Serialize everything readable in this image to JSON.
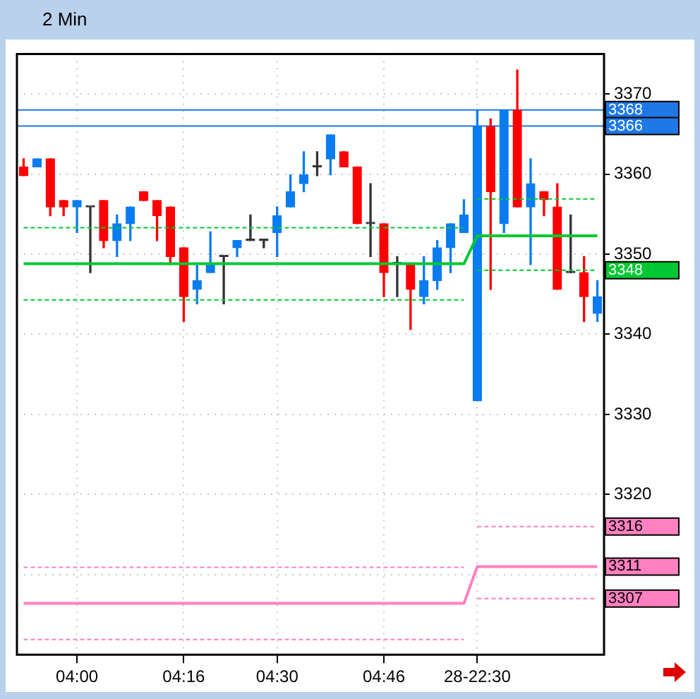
{
  "chart_data": {
    "type": "candlestick",
    "title": "2 Min",
    "categories": [
      null,
      null,
      null,
      null,
      "04:00",
      null,
      null,
      null,
      null,
      null,
      null,
      null,
      "04:16",
      null,
      null,
      null,
      null,
      null,
      null,
      "04:30",
      null,
      null,
      null,
      null,
      null,
      null,
      null,
      "04:46",
      null,
      null,
      null,
      null,
      null,
      null,
      "28-22:30",
      null,
      null,
      null,
      null,
      null,
      null,
      null,
      null,
      null
    ],
    "ohlc": [
      [
        3360.9,
        3361.9,
        3359.8,
        3359.8
      ],
      [
        3360.9,
        3361.9,
        3360.9,
        3361.9
      ],
      [
        3361.9,
        3361.9,
        3354.8,
        3355.9
      ],
      [
        3356.7,
        3356.7,
        3354.8,
        3355.9
      ],
      [
        3355.9,
        3356.7,
        3352.7,
        3356.7
      ],
      [
        3355.9,
        3355.9,
        3347.7,
        3355.9
      ],
      [
        3356.7,
        3356.7,
        3350.8,
        3351.7
      ],
      [
        3351.7,
        3354.9,
        3349.7,
        3353.8
      ],
      [
        3353.8,
        3355.9,
        3351.7,
        3355.9
      ],
      [
        3357.8,
        3357.8,
        3356.7,
        3356.7
      ],
      [
        3356.7,
        3356.7,
        3351.7,
        3354.8
      ],
      [
        3355.9,
        3355.9,
        3348.7,
        3349.7
      ],
      [
        3350.8,
        3350.8,
        3341.6,
        3344.7
      ],
      [
        3345.6,
        3348.8,
        3343.8,
        3346.7
      ],
      [
        3347.7,
        3352.8,
        3347.7,
        3348.8
      ],
      [
        3349.7,
        3349.7,
        3343.8,
        3349.7
      ],
      [
        3350.8,
        3351.7,
        3349.7,
        3351.7
      ],
      [
        3351.7,
        3354.9,
        3351.7,
        3351.7
      ],
      [
        3351.7,
        3351.7,
        3350.8,
        3351.7
      ],
      [
        3352.7,
        3355.9,
        3349.7,
        3354.8
      ],
      [
        3355.9,
        3359.9,
        3355.9,
        3357.8
      ],
      [
        3358.8,
        3362.8,
        3357.8,
        3359.9
      ],
      [
        3360.9,
        3362.8,
        3359.8,
        3360.9
      ],
      [
        3361.9,
        3364.9,
        3359.9,
        3364.9
      ],
      [
        3362.8,
        3362.8,
        3360.9,
        3360.9
      ],
      [
        3360.9,
        3360.9,
        3353.8,
        3353.8
      ],
      [
        3353.8,
        3358.8,
        3349.7,
        3353.8
      ],
      [
        3353.8,
        3353.8,
        3344.7,
        3347.7
      ],
      [
        3348.8,
        3349.7,
        3344.7,
        3348.8
      ],
      [
        3348.8,
        3348.8,
        3340.6,
        3345.6
      ],
      [
        3344.7,
        3349.7,
        3343.8,
        3346.7
      ],
      [
        3346.7,
        3351.7,
        3345.6,
        3350.8
      ],
      [
        3350.8,
        3353.8,
        3347.7,
        3353.8
      ],
      [
        3352.7,
        3356.8,
        3352.7,
        3354.9
      ],
      [
        3331.7,
        3368.0,
        3331.7,
        3365.9
      ],
      [
        3365.9,
        3366.9,
        3345.6,
        3357.8
      ],
      [
        3353.8,
        3368.0,
        3352.7,
        3368.0
      ],
      [
        3368.0,
        3373.0,
        3355.9,
        3355.9
      ],
      [
        3355.9,
        3361.9,
        3348.7,
        3358.8
      ],
      [
        3357.8,
        3357.8,
        3354.8,
        3356.8
      ],
      [
        3355.9,
        3358.8,
        3345.6,
        3345.6
      ],
      [
        3347.7,
        3354.9,
        3347.7,
        3347.7
      ],
      [
        3347.7,
        3349.7,
        3341.6,
        3344.7
      ],
      [
        3342.6,
        3346.7,
        3341.6,
        3344.7
      ]
    ],
    "colors": [
      "#ff0000",
      "#0a7cf0",
      "#ff0000",
      "#ff0000",
      "#0a7cf0",
      "#333333",
      "#ff0000",
      "#0a7cf0",
      "#0a7cf0",
      "#ff0000",
      "#ff0000",
      "#ff0000",
      "#ff0000",
      "#0a7cf0",
      "#0a7cf0",
      "#333333",
      "#0a7cf0",
      "#333333",
      "#333333",
      "#0a7cf0",
      "#0a7cf0",
      "#0a7cf0",
      "#333333",
      "#0a7cf0",
      "#ff0000",
      "#ff0000",
      "#333333",
      "#ff0000",
      "#333333",
      "#ff0000",
      "#0a7cf0",
      "#0a7cf0",
      "#0a7cf0",
      "#0a7cf0",
      "#0a7cf0",
      "#ff0000",
      "#0a7cf0",
      "#ff0000",
      "#0a7cf0",
      "#ff0000",
      "#ff0000",
      "#333333",
      "#ff0000",
      "#0a7cf0"
    ],
    "series": [
      {
        "type": "line",
        "color": "#00c832",
        "line_style": "solid",
        "values": [
          3348.8,
          3348.8,
          3348.8,
          3348.8,
          3348.8,
          3348.8,
          3348.8,
          3348.8,
          3348.8,
          3348.8,
          3348.8,
          3348.8,
          3348.8,
          3348.8,
          3348.8,
          3348.8,
          3348.8,
          3348.8,
          3348.8,
          3348.8,
          3348.8,
          3348.8,
          3348.8,
          3348.8,
          3348.8,
          3348.8,
          3348.8,
          3348.8,
          3348.8,
          3348.8,
          3348.8,
          3348.8,
          3348.8,
          3348.8,
          3352.3,
          3352.3,
          3352.3,
          3352.3,
          3352.3,
          3352.3,
          3352.3,
          3352.3,
          3352.3,
          3352.3
        ]
      },
      {
        "type": "line",
        "color": "#00c832",
        "line_style": "dashed",
        "values": [
          3353.3,
          3353.3,
          3353.3,
          3353.3,
          3353.3,
          3353.3,
          3353.3,
          3353.3,
          3353.3,
          3353.3,
          3353.3,
          3353.3,
          3353.3,
          3353.3,
          3353.3,
          3353.3,
          3353.3,
          3353.3,
          3353.3,
          3353.3,
          3353.3,
          3353.3,
          3353.3,
          3353.3,
          3353.3,
          3353.3,
          3353.3,
          3353.3,
          3353.3,
          3353.3,
          3353.3,
          3353.3,
          3353.3,
          3353.3,
          null,
          null,
          null,
          null,
          null,
          null,
          null,
          null,
          null,
          null
        ]
      },
      {
        "type": "line",
        "color": "#00c832",
        "line_style": "dashed",
        "values": [
          3344.3,
          3344.3,
          3344.3,
          3344.3,
          3344.3,
          3344.3,
          3344.3,
          3344.3,
          3344.3,
          3344.3,
          3344.3,
          3344.3,
          3344.3,
          3344.3,
          3344.3,
          3344.3,
          3344.3,
          3344.3,
          3344.3,
          3344.3,
          3344.3,
          3344.3,
          3344.3,
          3344.3,
          3344.3,
          3344.3,
          3344.3,
          3344.3,
          3344.3,
          3344.3,
          3344.3,
          3344.3,
          3344.3,
          3344.3,
          null,
          null,
          null,
          null,
          null,
          null,
          null,
          null,
          null,
          null
        ]
      },
      {
        "type": "line",
        "color": "#00c832",
        "line_style": "dashed",
        "values": [
          null,
          null,
          null,
          null,
          null,
          null,
          null,
          null,
          null,
          null,
          null,
          null,
          null,
          null,
          null,
          null,
          null,
          null,
          null,
          null,
          null,
          null,
          null,
          null,
          null,
          null,
          null,
          null,
          null,
          null,
          null,
          null,
          null,
          null,
          3356.9,
          3356.9,
          3356.9,
          3356.9,
          3356.9,
          3356.9,
          3356.9,
          3356.9,
          3356.9,
          3356.9
        ]
      },
      {
        "type": "line",
        "color": "#00c832",
        "line_style": "dashed",
        "values": [
          null,
          null,
          null,
          null,
          null,
          null,
          null,
          null,
          null,
          null,
          null,
          null,
          null,
          null,
          null,
          null,
          null,
          null,
          null,
          null,
          null,
          null,
          null,
          null,
          null,
          null,
          null,
          null,
          null,
          null,
          null,
          null,
          null,
          null,
          3348,
          3348,
          3348,
          3348,
          3348,
          3348,
          3348,
          3348,
          3348,
          3348
        ],
        "value_labels": [
          null,
          null,
          null,
          null,
          null,
          null,
          null,
          null,
          null,
          null,
          null,
          null,
          null,
          null,
          null,
          null,
          null,
          null,
          null,
          null,
          null,
          null,
          null,
          null,
          null,
          null,
          null,
          null,
          null,
          null,
          null,
          null,
          null,
          null,
          null,
          null,
          null,
          null,
          null,
          null,
          null,
          null,
          null,
          "3348"
        ]
      },
      {
        "type": "line",
        "color": "#ff80c0",
        "line_style": "solid",
        "values": [
          3306.4,
          3306.4,
          3306.4,
          3306.4,
          3306.4,
          3306.4,
          3306.4,
          3306.4,
          3306.4,
          3306.4,
          3306.4,
          3306.4,
          3306.4,
          3306.4,
          3306.4,
          3306.4,
          3306.4,
          3306.4,
          3306.4,
          3306.4,
          3306.4,
          3306.4,
          3306.4,
          3306.4,
          3306.4,
          3306.4,
          3306.4,
          3306.4,
          3306.4,
          3306.4,
          3306.4,
          3306.4,
          3306.4,
          3306.4,
          3311,
          3311,
          3311,
          3311,
          3311,
          3311,
          3311,
          3311,
          3311,
          3311
        ],
        "value_labels": [
          null,
          null,
          null,
          null,
          null,
          null,
          null,
          null,
          null,
          null,
          null,
          null,
          null,
          null,
          null,
          null,
          null,
          null,
          null,
          null,
          null,
          null,
          null,
          null,
          null,
          null,
          null,
          null,
          null,
          null,
          null,
          null,
          null,
          null,
          null,
          null,
          null,
          null,
          null,
          null,
          null,
          null,
          null,
          "3311"
        ]
      },
      {
        "type": "line",
        "color": "#ff80c0",
        "line_style": "dashed",
        "values": [
          3310.9,
          3310.9,
          3310.9,
          3310.9,
          3310.9,
          3310.9,
          3310.9,
          3310.9,
          3310.9,
          3310.9,
          3310.9,
          3310.9,
          3310.9,
          3310.9,
          3310.9,
          3310.9,
          3310.9,
          3310.9,
          3310.9,
          3310.9,
          3310.9,
          3310.9,
          3310.9,
          3310.9,
          3310.9,
          3310.9,
          3310.9,
          3310.9,
          3310.9,
          3310.9,
          3310.9,
          3310.9,
          3310.9,
          3310.9,
          null,
          null,
          null,
          null,
          null,
          null,
          null,
          null,
          null,
          null
        ]
      },
      {
        "type": "line",
        "color": "#ff80c0",
        "line_style": "dashed",
        "values": [
          3301.9,
          3301.9,
          3301.9,
          3301.9,
          3301.9,
          3301.9,
          3301.9,
          3301.9,
          3301.9,
          3301.9,
          3301.9,
          3301.9,
          3301.9,
          3301.9,
          3301.9,
          3301.9,
          3301.9,
          3301.9,
          3301.9,
          3301.9,
          3301.9,
          3301.9,
          3301.9,
          3301.9,
          3301.9,
          3301.9,
          3301.9,
          3301.9,
          3301.9,
          3301.9,
          3301.9,
          3301.9,
          3301.9,
          3301.9,
          null,
          null,
          null,
          null,
          null,
          null,
          null,
          null,
          null,
          null
        ]
      },
      {
        "type": "line",
        "color": "#ff80c0",
        "line_style": "dashed",
        "values": [
          null,
          null,
          null,
          null,
          null,
          null,
          null,
          null,
          null,
          null,
          null,
          null,
          null,
          null,
          null,
          null,
          null,
          null,
          null,
          null,
          null,
          null,
          null,
          null,
          null,
          null,
          null,
          null,
          null,
          null,
          null,
          null,
          null,
          null,
          3316,
          3316,
          3316,
          3316,
          3316,
          3316,
          3316,
          3316,
          3316,
          3316
        ],
        "value_labels": [
          null,
          null,
          null,
          null,
          null,
          null,
          null,
          null,
          null,
          null,
          null,
          null,
          null,
          null,
          null,
          null,
          null,
          null,
          null,
          null,
          null,
          null,
          null,
          null,
          null,
          null,
          null,
          null,
          null,
          null,
          null,
          null,
          null,
          null,
          null,
          null,
          null,
          null,
          null,
          null,
          null,
          null,
          null,
          "3316"
        ]
      },
      {
        "type": "line",
        "color": "#ff80c0",
        "line_style": "dashed",
        "values": [
          null,
          null,
          null,
          null,
          null,
          null,
          null,
          null,
          null,
          null,
          null,
          null,
          null,
          null,
          null,
          null,
          null,
          null,
          null,
          null,
          null,
          null,
          null,
          null,
          null,
          null,
          null,
          null,
          null,
          null,
          null,
          null,
          null,
          null,
          3307,
          3307,
          3307,
          3307,
          3307,
          3307,
          3307,
          3307,
          3307,
          3307
        ],
        "value_labels": [
          null,
          null,
          null,
          null,
          null,
          null,
          null,
          null,
          null,
          null,
          null,
          null,
          null,
          null,
          null,
          null,
          null,
          null,
          null,
          null,
          null,
          null,
          null,
          null,
          null,
          null,
          null,
          null,
          null,
          null,
          null,
          null,
          null,
          null,
          null,
          null,
          null,
          null,
          null,
          null,
          null,
          null,
          null,
          "3307"
        ]
      }
    ],
    "ref_lines": [
      {
        "axis": "y",
        "value": 3368,
        "label": "3368",
        "color": "#1e78e6"
      },
      {
        "axis": "y",
        "value": 3366,
        "label": "3366",
        "color": "#1e78e6"
      }
    ],
    "ylim": [
      3300,
      3375
    ],
    "yticks": [
      {
        "value": 3310,
        "label": null
      },
      3320,
      3330,
      3340,
      3350,
      3360,
      3370
    ],
    "grid": true,
    "marker": "none"
  }
}
